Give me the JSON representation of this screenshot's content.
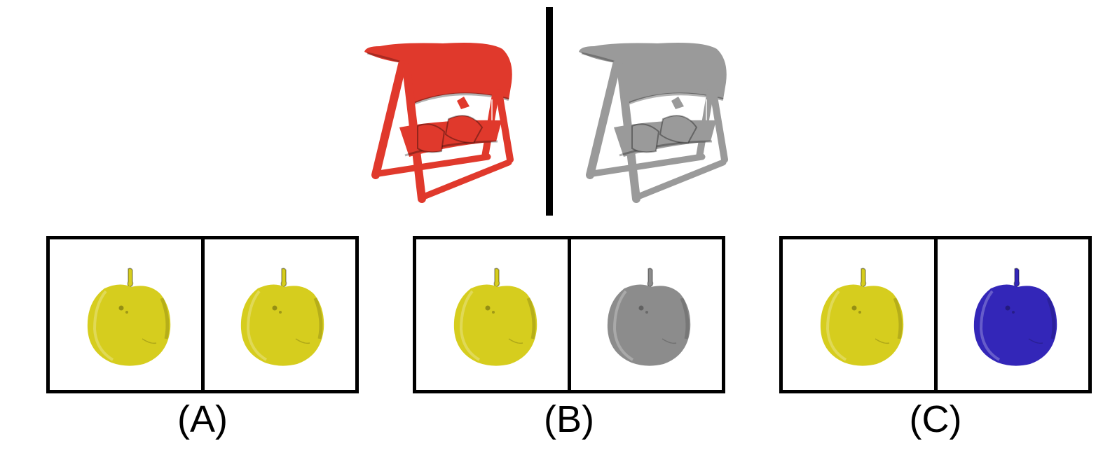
{
  "reference": {
    "left_color": "#e0392c",
    "right_color": "#9a9a9a",
    "left_icon": "red-swing-icon",
    "right_icon": "grayscale-swing-icon"
  },
  "options": [
    {
      "label": "(A)",
      "left_color": "#d6cd1e",
      "right_color": "#d6cd1e"
    },
    {
      "label": "(B)",
      "left_color": "#d6cd1e",
      "right_color": "#8c8c8c"
    },
    {
      "label": "(C)",
      "left_color": "#d6cd1e",
      "right_color": "#3326b8"
    }
  ]
}
